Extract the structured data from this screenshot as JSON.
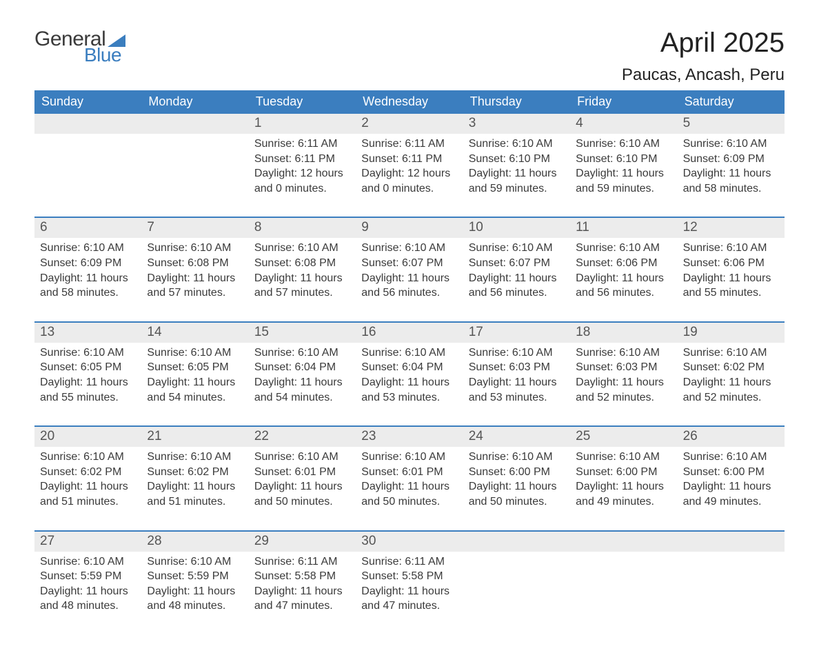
{
  "logo": {
    "word1": "General",
    "word2": "Blue",
    "accent_color": "#3b7ebf"
  },
  "header": {
    "month_title": "April 2025",
    "location": "Paucas, Ancash, Peru"
  },
  "colors": {
    "header_bg": "#3b7ebf",
    "header_text": "#ffffff",
    "daynum_bg": "#ececec",
    "daynum_text": "#555555",
    "body_text": "#3a3a3a",
    "week_border": "#3b7ebf",
    "page_bg": "#ffffff"
  },
  "labels": {
    "sunrise": "Sunrise:",
    "sunset": "Sunset:",
    "daylight": "Daylight:"
  },
  "days_of_week": [
    "Sunday",
    "Monday",
    "Tuesday",
    "Wednesday",
    "Thursday",
    "Friday",
    "Saturday"
  ],
  "start_weekday_index": 2,
  "days": [
    {
      "n": 1,
      "sunrise": "6:11 AM",
      "sunset": "6:11 PM",
      "daylight": "12 hours and 0 minutes."
    },
    {
      "n": 2,
      "sunrise": "6:11 AM",
      "sunset": "6:11 PM",
      "daylight": "12 hours and 0 minutes."
    },
    {
      "n": 3,
      "sunrise": "6:10 AM",
      "sunset": "6:10 PM",
      "daylight": "11 hours and 59 minutes."
    },
    {
      "n": 4,
      "sunrise": "6:10 AM",
      "sunset": "6:10 PM",
      "daylight": "11 hours and 59 minutes."
    },
    {
      "n": 5,
      "sunrise": "6:10 AM",
      "sunset": "6:09 PM",
      "daylight": "11 hours and 58 minutes."
    },
    {
      "n": 6,
      "sunrise": "6:10 AM",
      "sunset": "6:09 PM",
      "daylight": "11 hours and 58 minutes."
    },
    {
      "n": 7,
      "sunrise": "6:10 AM",
      "sunset": "6:08 PM",
      "daylight": "11 hours and 57 minutes."
    },
    {
      "n": 8,
      "sunrise": "6:10 AM",
      "sunset": "6:08 PM",
      "daylight": "11 hours and 57 minutes."
    },
    {
      "n": 9,
      "sunrise": "6:10 AM",
      "sunset": "6:07 PM",
      "daylight": "11 hours and 56 minutes."
    },
    {
      "n": 10,
      "sunrise": "6:10 AM",
      "sunset": "6:07 PM",
      "daylight": "11 hours and 56 minutes."
    },
    {
      "n": 11,
      "sunrise": "6:10 AM",
      "sunset": "6:06 PM",
      "daylight": "11 hours and 56 minutes."
    },
    {
      "n": 12,
      "sunrise": "6:10 AM",
      "sunset": "6:06 PM",
      "daylight": "11 hours and 55 minutes."
    },
    {
      "n": 13,
      "sunrise": "6:10 AM",
      "sunset": "6:05 PM",
      "daylight": "11 hours and 55 minutes."
    },
    {
      "n": 14,
      "sunrise": "6:10 AM",
      "sunset": "6:05 PM",
      "daylight": "11 hours and 54 minutes."
    },
    {
      "n": 15,
      "sunrise": "6:10 AM",
      "sunset": "6:04 PM",
      "daylight": "11 hours and 54 minutes."
    },
    {
      "n": 16,
      "sunrise": "6:10 AM",
      "sunset": "6:04 PM",
      "daylight": "11 hours and 53 minutes."
    },
    {
      "n": 17,
      "sunrise": "6:10 AM",
      "sunset": "6:03 PM",
      "daylight": "11 hours and 53 minutes."
    },
    {
      "n": 18,
      "sunrise": "6:10 AM",
      "sunset": "6:03 PM",
      "daylight": "11 hours and 52 minutes."
    },
    {
      "n": 19,
      "sunrise": "6:10 AM",
      "sunset": "6:02 PM",
      "daylight": "11 hours and 52 minutes."
    },
    {
      "n": 20,
      "sunrise": "6:10 AM",
      "sunset": "6:02 PM",
      "daylight": "11 hours and 51 minutes."
    },
    {
      "n": 21,
      "sunrise": "6:10 AM",
      "sunset": "6:02 PM",
      "daylight": "11 hours and 51 minutes."
    },
    {
      "n": 22,
      "sunrise": "6:10 AM",
      "sunset": "6:01 PM",
      "daylight": "11 hours and 50 minutes."
    },
    {
      "n": 23,
      "sunrise": "6:10 AM",
      "sunset": "6:01 PM",
      "daylight": "11 hours and 50 minutes."
    },
    {
      "n": 24,
      "sunrise": "6:10 AM",
      "sunset": "6:00 PM",
      "daylight": "11 hours and 50 minutes."
    },
    {
      "n": 25,
      "sunrise": "6:10 AM",
      "sunset": "6:00 PM",
      "daylight": "11 hours and 49 minutes."
    },
    {
      "n": 26,
      "sunrise": "6:10 AM",
      "sunset": "6:00 PM",
      "daylight": "11 hours and 49 minutes."
    },
    {
      "n": 27,
      "sunrise": "6:10 AM",
      "sunset": "5:59 PM",
      "daylight": "11 hours and 48 minutes."
    },
    {
      "n": 28,
      "sunrise": "6:10 AM",
      "sunset": "5:59 PM",
      "daylight": "11 hours and 48 minutes."
    },
    {
      "n": 29,
      "sunrise": "6:11 AM",
      "sunset": "5:58 PM",
      "daylight": "11 hours and 47 minutes."
    },
    {
      "n": 30,
      "sunrise": "6:11 AM",
      "sunset": "5:58 PM",
      "daylight": "11 hours and 47 minutes."
    }
  ]
}
